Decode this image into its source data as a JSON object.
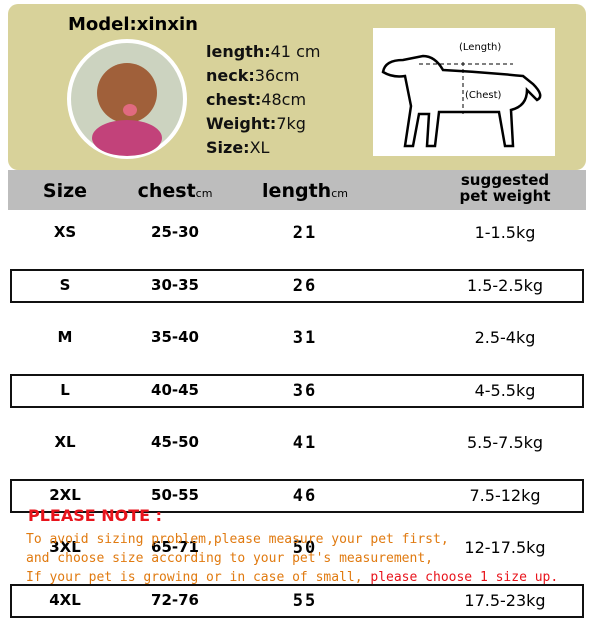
{
  "header": {
    "model": "Model:xinxin",
    "specs": [
      {
        "label": "length:",
        "value": "41 cm"
      },
      {
        "label": "neck:",
        "value": "36cm"
      },
      {
        "label": "chest:",
        "value": "48cm"
      },
      {
        "label": "Weight:",
        "value": "7kg"
      },
      {
        "label": "Size:",
        "value": "XL"
      }
    ],
    "diagram": {
      "length": "(Length)",
      "chest": "(Chest)"
    }
  },
  "table": {
    "columns": [
      {
        "label": "Size"
      },
      {
        "label": "chest",
        "unit": "cm"
      },
      {
        "label": "length",
        "unit": "cm"
      },
      {
        "label": "suggested pet weight"
      }
    ],
    "rows": [
      [
        "XS",
        "25-30",
        "21",
        "1-1.5kg"
      ],
      [
        "S",
        "30-35",
        "26",
        "1.5-2.5kg"
      ],
      [
        "M",
        "35-40",
        "31",
        "2.5-4kg"
      ],
      [
        "L",
        "40-45",
        "36",
        "4-5.5kg"
      ],
      [
        "XL",
        "45-50",
        "41",
        "5.5-7.5kg"
      ],
      [
        "2XL",
        "50-55",
        "46",
        "7.5-12kg"
      ],
      [
        "3XL",
        "65-71",
        "50",
        "12-17.5kg"
      ],
      [
        "4XL",
        "72-76",
        "55",
        "17.5-23kg"
      ]
    ]
  },
  "note": {
    "title": "PLEASE NOTE :",
    "lines": [
      "To avoid sizing problem,please measure your pet first,",
      "and choose size according to your pet's measurement,"
    ],
    "last_line": {
      "normal": "If your pet is growing or in case of small,",
      "emphasis": "please choose 1 size up."
    }
  }
}
